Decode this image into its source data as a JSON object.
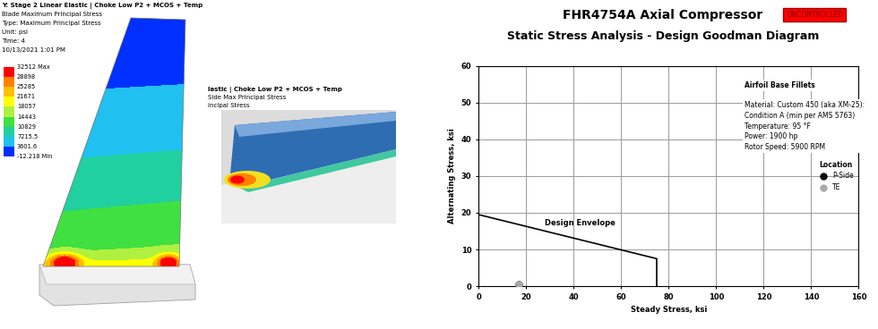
{
  "contour_plot": {
    "header": [
      "Y: Stage 2 Linear Elastic | Choke Low P2 + MCOS + Temp",
      "Blade Maximum Principal Stress",
      "Type: Maximum Principal Stress",
      "Unit: psi",
      "Time: 4",
      "10/13/2021 1:01 PM"
    ],
    "scale": [
      {
        "value": 32512,
        "label": "32512 Max"
      },
      28898,
      25285,
      21671,
      18057,
      14443,
      10829,
      7215.5,
      3601.6,
      {
        "value": -12.218,
        "label": "-12.218 Min"
      }
    ]
  },
  "detail_view": {
    "header": [
      "lastic | Choke Low P2 + MCOS + Temp",
      "Side Max Principal Stress",
      "incipal Stress"
    ]
  },
  "stamp": "UNCONTROLLED",
  "chart_data": {
    "type": "line",
    "title": "FHR4754A Axial Compressor",
    "subtitle": "Static Stress Analysis - Design Goodman Diagram",
    "x_label": "Steady Stress, ksi",
    "y_label": "Alternating Stress, ksi",
    "annotations": [
      "Airfoil Base Fillets",
      "Material: Custom 450 (aka XM-25):",
      "Condition A (min per AMS 5763)",
      "Temperature: 95 °F",
      "Power: 1900 hp",
      "Rotor Speed: 5900 RPM"
    ],
    "legend": "center right",
    "legend_title": "Location",
    "grid": true,
    "xlim": [
      0,
      160
    ],
    "xticks": [
      0,
      20,
      40,
      60,
      80,
      100,
      120,
      140,
      160
    ],
    "ylim": [
      0,
      60
    ],
    "yticks": [
      0,
      10,
      20,
      30,
      40,
      50,
      60
    ],
    "series": [
      {
        "name": "Design Envelope",
        "type": "line",
        "color": "#000000",
        "line_style": "solid",
        "x": [
          0,
          75,
          75
        ],
        "values": [
          19.5,
          7.5,
          0
        ]
      },
      {
        "name": "P-Side",
        "type": "scatter",
        "color": "#000000",
        "marker": "o",
        "x": [
          17
        ],
        "values": [
          0.5
        ]
      },
      {
        "name": "TE",
        "type": "scatter",
        "color": "#a8a8a8",
        "marker": "o",
        "x": [
          17
        ],
        "values": [
          0.5
        ]
      }
    ]
  }
}
